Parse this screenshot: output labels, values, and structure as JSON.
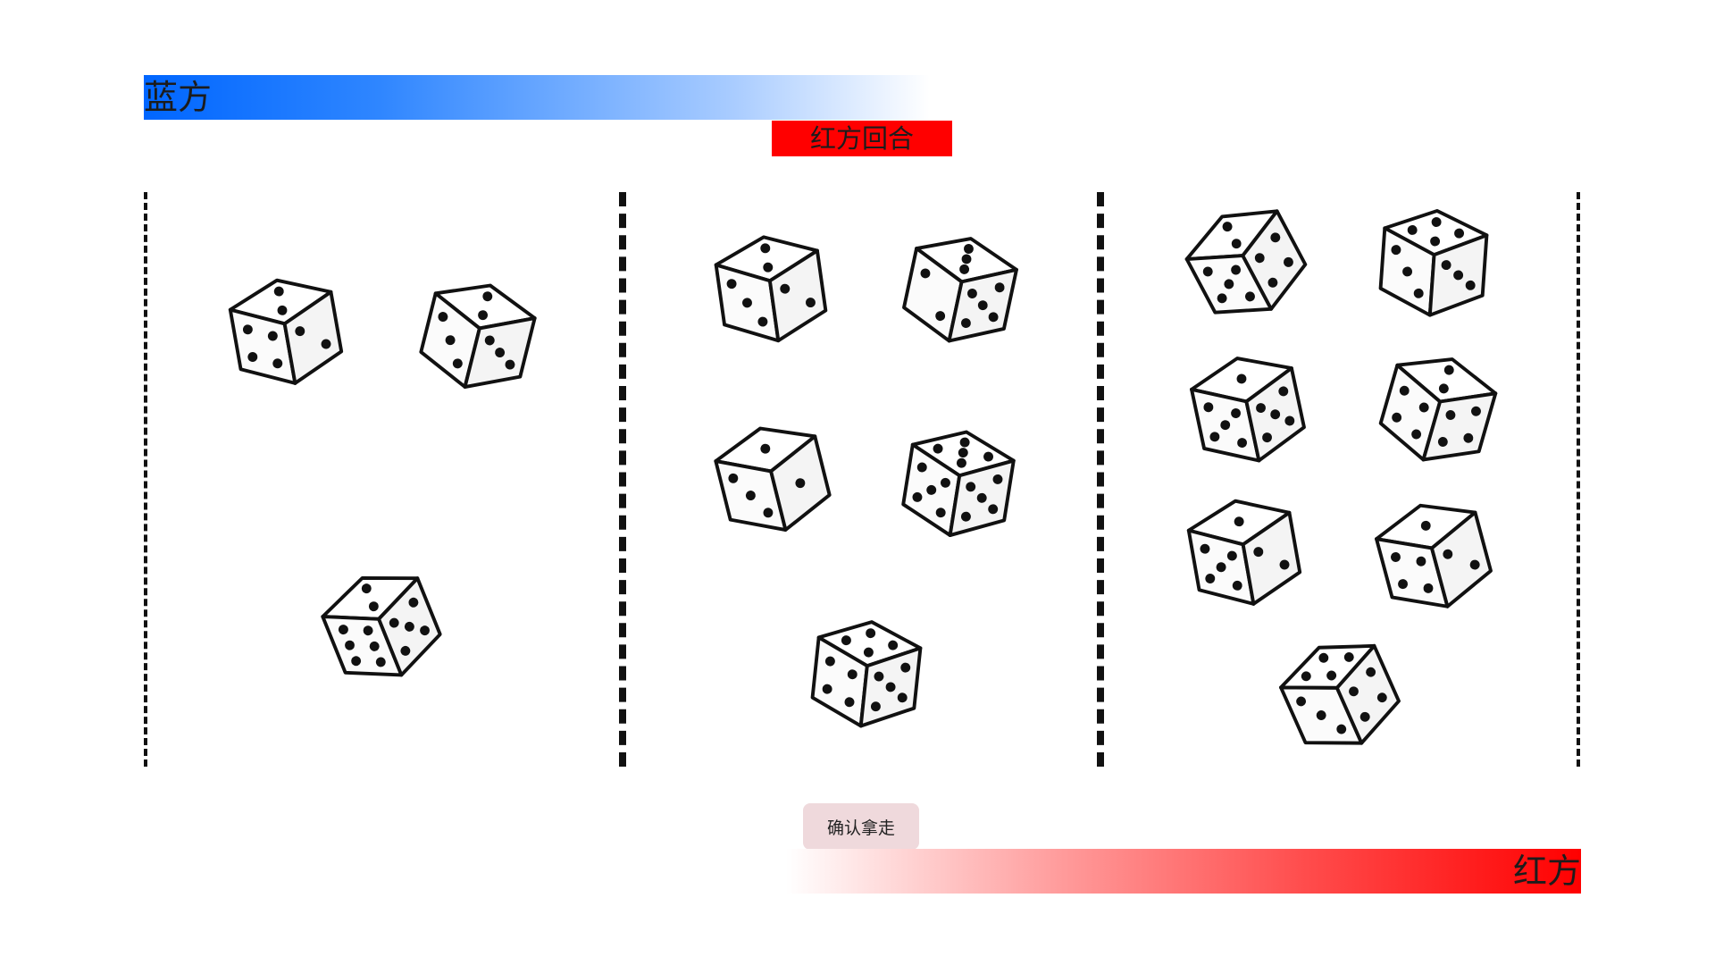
{
  "players": {
    "blue": {
      "label": "蓝方",
      "color": "#0066ff"
    },
    "red": {
      "label": "红方",
      "color": "#ff0000"
    }
  },
  "turn": {
    "label": "红方回合",
    "color": "#ff0000"
  },
  "actions": {
    "confirm_label": "确认拿走"
  },
  "groups": [
    {
      "dice": [
        {
          "top": 2,
          "left": 4,
          "right": 2
        },
        {
          "top": 2,
          "left": 3,
          "right": 3
        },
        {
          "top": 2,
          "left": 6,
          "right": 5
        }
      ]
    },
    {
      "dice": [
        {
          "top": 2,
          "left": 3,
          "right": 2
        },
        {
          "top": 3,
          "left": 2,
          "right": 5
        },
        {
          "top": 1,
          "left": 3,
          "right": 1
        },
        {
          "top": 5,
          "left": 5,
          "right": 5
        },
        {
          "top": 4,
          "left": 4,
          "right": 5
        }
      ]
    },
    {
      "dice": [
        {
          "top": 2,
          "left": 5,
          "right": 4
        },
        {
          "top": 4,
          "left": 3,
          "right": 3
        },
        {
          "top": 1,
          "left": 5,
          "right": 5
        },
        {
          "top": 2,
          "left": 4,
          "right": 4
        },
        {
          "top": 1,
          "left": 5,
          "right": 2
        },
        {
          "top": 1,
          "left": 4,
          "right": 2
        },
        {
          "top": 4,
          "left": 3,
          "right": 4
        }
      ]
    }
  ]
}
